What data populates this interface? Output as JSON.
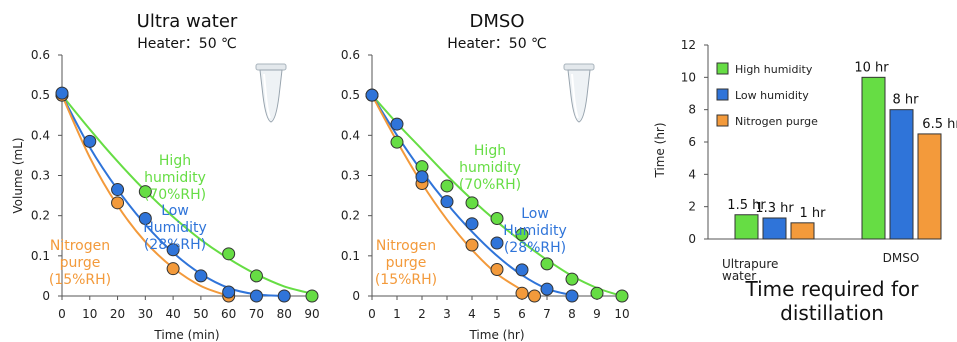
{
  "chart_data": [
    {
      "type": "line",
      "title": "Ultra water",
      "subtitle": "Heater：50 ℃",
      "xlabel": "Time (min)",
      "ylabel": "Volume (mL)",
      "xlim": [
        0,
        90
      ],
      "ylim": [
        0,
        0.6
      ],
      "xticks": [
        0,
        10,
        20,
        30,
        40,
        50,
        60,
        70,
        80,
        90
      ],
      "yticks": [
        0,
        0.1,
        0.2,
        0.3,
        0.4,
        0.5,
        0.6
      ],
      "ytick_labels": [
        "0",
        "0.1",
        "0.2",
        "0.3",
        "0.4",
        "0.5",
        "0.6"
      ],
      "grid": false,
      "series": [
        {
          "name": "High humidity (70%RH)",
          "label_lines": [
            "High",
            "humidity",
            "(70%RH)"
          ],
          "color": "#66dd44",
          "points": [
            [
              0,
              0.5
            ],
            [
              30,
              0.26
            ],
            [
              60,
              0.105
            ],
            [
              70,
              0.05
            ],
            [
              90,
              0
            ]
          ],
          "curve": [
            [
              0,
              0.5
            ],
            [
              10,
              0.415
            ],
            [
              20,
              0.335
            ],
            [
              30,
              0.262
            ],
            [
              40,
              0.197
            ],
            [
              50,
              0.14
            ],
            [
              60,
              0.093
            ],
            [
              70,
              0.054
            ],
            [
              80,
              0.024
            ],
            [
              90,
              0.006
            ]
          ]
        },
        {
          "name": "Low Humidity (28%RH)",
          "label_lines": [
            "Low",
            "Humidity",
            "(28%RH)"
          ],
          "color": "#2f74d9",
          "points": [
            [
              0,
              0.505
            ],
            [
              10,
              0.385
            ],
            [
              20,
              0.265
            ],
            [
              30,
              0.193
            ],
            [
              40,
              0.115
            ],
            [
              50,
              0.05
            ],
            [
              60,
              0.01
            ],
            [
              70,
              0
            ],
            [
              80,
              0
            ]
          ],
          "curve": [
            [
              0,
              0.5
            ],
            [
              10,
              0.37
            ],
            [
              20,
              0.265
            ],
            [
              30,
              0.178
            ],
            [
              40,
              0.108
            ],
            [
              50,
              0.055
            ],
            [
              60,
              0.02
            ],
            [
              70,
              0.004
            ],
            [
              80,
              0
            ]
          ]
        },
        {
          "name": "Nitrogen purge (15%RH)",
          "label_lines": [
            "Nitrogen",
            "purge",
            "(15%RH)"
          ],
          "color": "#f39a3b",
          "points": [
            [
              0,
              0.5
            ],
            [
              20,
              0.232
            ],
            [
              40,
              0.068
            ],
            [
              60,
              0
            ]
          ],
          "curve": [
            [
              0,
              0.5
            ],
            [
              10,
              0.345
            ],
            [
              20,
              0.225
            ],
            [
              30,
              0.135
            ],
            [
              40,
              0.07
            ],
            [
              50,
              0.025
            ],
            [
              60,
              0
            ]
          ]
        }
      ]
    },
    {
      "type": "line",
      "title": "DMSO",
      "subtitle": "Heater：50 ℃",
      "xlabel": "Time (hr)",
      "ylabel": "",
      "xlim": [
        0,
        10
      ],
      "ylim": [
        0,
        0.6
      ],
      "xticks": [
        0,
        1,
        2,
        3,
        4,
        5,
        6,
        7,
        8,
        9,
        10
      ],
      "yticks": [
        0,
        0.1,
        0.2,
        0.3,
        0.4,
        0.5,
        0.6
      ],
      "ytick_labels": [
        "0",
        "0.1",
        "0.2",
        "0.3",
        "0.4",
        "0.5",
        "0.6"
      ],
      "grid": false,
      "series": [
        {
          "name": "High humidity (70%RH)",
          "label_lines": [
            "High",
            "humidity",
            "(70%RH)"
          ],
          "color": "#66dd44",
          "points": [
            [
              0,
              0.5
            ],
            [
              1,
              0.383
            ],
            [
              2,
              0.322
            ],
            [
              3,
              0.274
            ],
            [
              4,
              0.232
            ],
            [
              5,
              0.193
            ],
            [
              6,
              0.153
            ],
            [
              7,
              0.08
            ],
            [
              8,
              0.042
            ],
            [
              9,
              0.007
            ],
            [
              10,
              0
            ]
          ],
          "curve": [
            [
              0,
              0.5
            ],
            [
              1,
              0.43
            ],
            [
              2,
              0.365
            ],
            [
              3,
              0.3
            ],
            [
              4,
              0.24
            ],
            [
              5,
              0.185
            ],
            [
              6,
              0.135
            ],
            [
              7,
              0.09
            ],
            [
              8,
              0.05
            ],
            [
              9,
              0.02
            ],
            [
              10,
              0
            ]
          ]
        },
        {
          "name": "Low Humidity (28%RH)",
          "label_lines": [
            "Low",
            "Humidity",
            "(28%RH)"
          ],
          "color": "#2f74d9",
          "points": [
            [
              0,
              0.5
            ],
            [
              1,
              0.428
            ],
            [
              2,
              0.297
            ],
            [
              3,
              0.235
            ],
            [
              4,
              0.18
            ],
            [
              5,
              0.132
            ],
            [
              6,
              0.065
            ],
            [
              7,
              0.017
            ],
            [
              8,
              0
            ]
          ],
          "curve": [
            [
              0,
              0.5
            ],
            [
              1,
              0.4
            ],
            [
              2,
              0.31
            ],
            [
              3,
              0.23
            ],
            [
              4,
              0.16
            ],
            [
              5,
              0.1
            ],
            [
              6,
              0.052
            ],
            [
              7,
              0.018
            ],
            [
              8,
              0.002
            ]
          ]
        },
        {
          "name": "Nitrogen purge (15%RH)",
          "label_lines": [
            "Nitrogen",
            "purge",
            "(15%RH)"
          ],
          "color": "#f39a3b",
          "points": [
            [
              0,
              0.5
            ],
            [
              2,
              0.28
            ],
            [
              4,
              0.127
            ],
            [
              5,
              0.066
            ],
            [
              6,
              0.007
            ],
            [
              6.5,
              0
            ]
          ],
          "curve": [
            [
              0,
              0.5
            ],
            [
              1,
              0.385
            ],
            [
              2,
              0.28
            ],
            [
              3,
              0.19
            ],
            [
              4,
              0.115
            ],
            [
              5,
              0.055
            ],
            [
              6,
              0.015
            ],
            [
              6.5,
              0
            ]
          ]
        }
      ]
    },
    {
      "type": "bar",
      "title": "Time required for distillation",
      "title_lines": [
        "Time required for",
        "distillation"
      ],
      "xlabel": "",
      "ylabel": "Time (hr)",
      "ylim": [
        0,
        12
      ],
      "yticks": [
        0,
        2,
        4,
        6,
        8,
        10,
        12
      ],
      "categories": [
        "Ultrapure water",
        "DMSO"
      ],
      "category_lines": [
        [
          "Ultrapure",
          "water"
        ],
        [
          "DMSO"
        ]
      ],
      "legend_position": "top-left",
      "series": [
        {
          "name": "High humidity",
          "color": "#66dd44",
          "values": [
            1.5,
            10
          ],
          "labels": [
            "1.5 hr",
            "10 hr"
          ]
        },
        {
          "name": "Low humidity",
          "color": "#2f74d9",
          "values": [
            1.3,
            8
          ],
          "labels": [
            "1.3 hr",
            "8 hr"
          ]
        },
        {
          "name": "Nitrogen purge",
          "color": "#f39a3b",
          "values": [
            1,
            6.5
          ],
          "labels": [
            "1 hr",
            "6.5 hr"
          ]
        }
      ]
    }
  ]
}
